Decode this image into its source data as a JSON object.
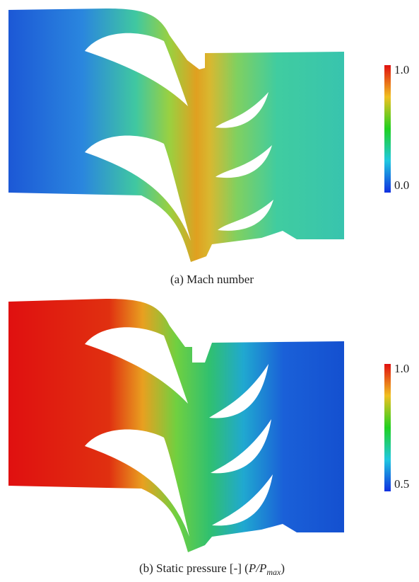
{
  "panels": [
    {
      "caption": {
        "text": "(a) Mach number"
      },
      "colorbar": {
        "top_label": "1.0",
        "bottom_label": "0.0"
      }
    },
    {
      "caption": {
        "text": "(b) Static pressure [-] (",
        "var1": "P",
        "slash": "/",
        "var2": "P",
        "sub": "max",
        "close": ")"
      },
      "colorbar": {
        "top_label": "1.0",
        "bottom_label": "0.5"
      }
    }
  ]
}
